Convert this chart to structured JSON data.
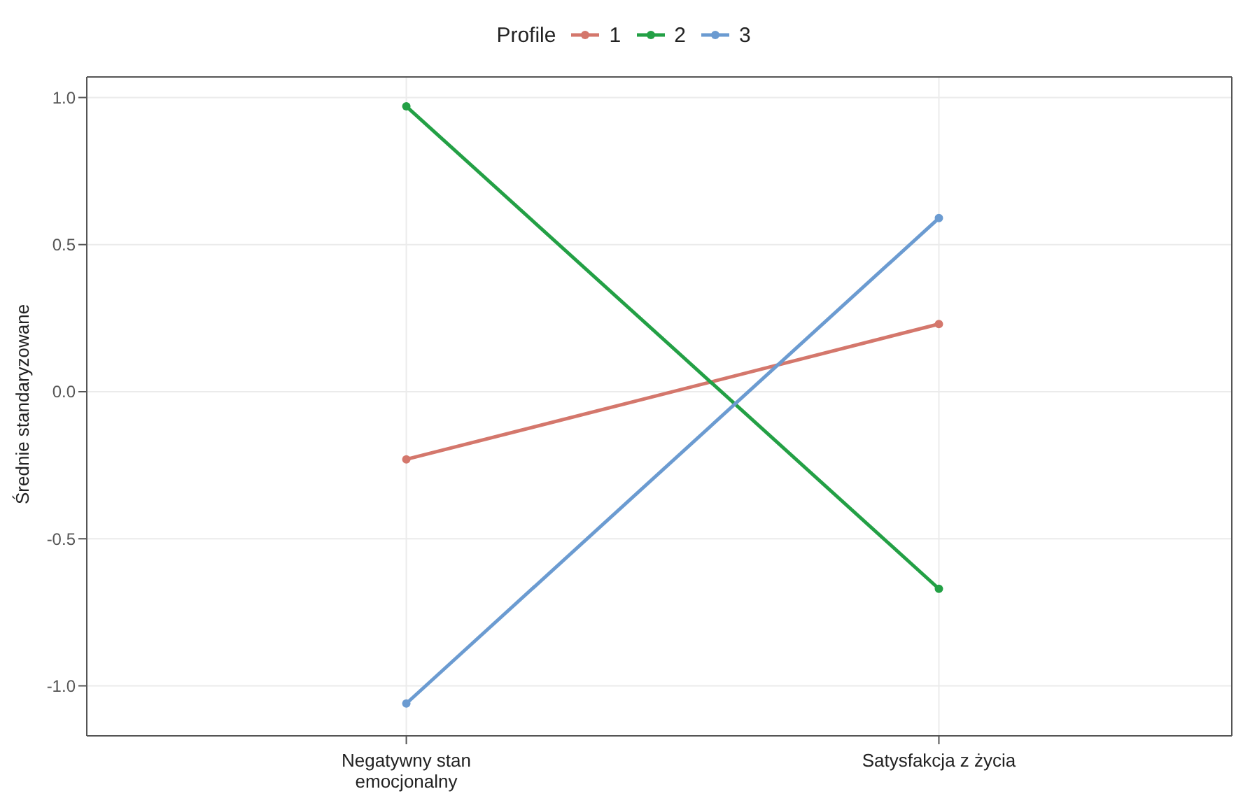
{
  "chart_data": {
    "type": "line",
    "ylabel": "Średnie standaryzowane",
    "legend_title": "Profile",
    "categories": [
      "Negatywny stan emocjonalny",
      "Satysfakcja z życia"
    ],
    "series": [
      {
        "name": "1",
        "color": "#d4776c",
        "values": [
          -0.23,
          0.23
        ]
      },
      {
        "name": "2",
        "color": "#23a045",
        "values": [
          0.97,
          -0.67
        ]
      },
      {
        "name": "3",
        "color": "#6b9bd1",
        "values": [
          -1.06,
          0.59
        ]
      }
    ],
    "ylim": [
      -1.17,
      1.07
    ],
    "yticks": [
      {
        "value": -1,
        "label": "-1.0"
      },
      {
        "value": -0.5,
        "label": "-0.5"
      },
      {
        "value": 0,
        "label": "0.0"
      },
      {
        "value": 0.5,
        "label": "0.5"
      },
      {
        "value": 1,
        "label": "1.0"
      }
    ],
    "grid": true,
    "legend": "top",
    "marker": "circle",
    "line_style": "solid"
  }
}
